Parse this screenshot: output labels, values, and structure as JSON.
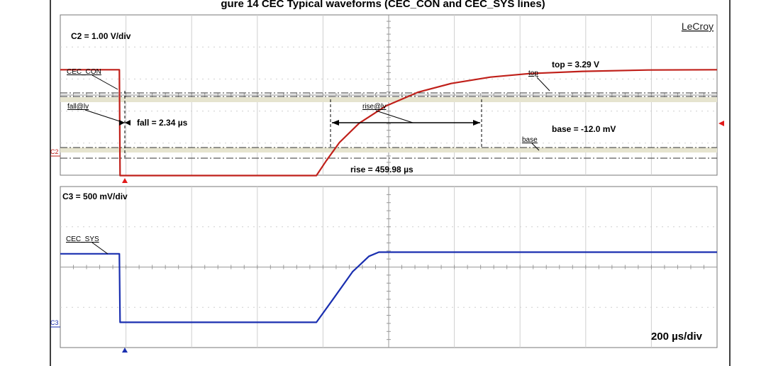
{
  "figure_title_fragment": "gure 14 CEC Typical waveforms (CEC_CON and CEC_SYS lines)",
  "chart_data": [
    {
      "type": "line",
      "panel": "top",
      "scale_label": "C2 = 1.00 V/div",
      "brand": "LeCroy",
      "channel_marker": "C2",
      "trace_label": "CEC_CON",
      "color": "#c0201a",
      "grid": true,
      "x_unit": "µs",
      "ylim_div": [
        -3.3,
        1.7
      ],
      "series": [
        {
          "name": "CEC_CON",
          "x": [
            -95,
            -5,
            -4,
            295,
            310,
            330,
            360,
            400,
            450,
            500,
            560,
            620,
            700,
            800,
            905
          ],
          "y": [
            3.29,
            3.29,
            -0.012,
            -0.012,
            0.45,
            1.02,
            1.62,
            2.15,
            2.59,
            2.86,
            3.06,
            3.17,
            3.24,
            3.28,
            3.29
          ]
        }
      ],
      "annotations": {
        "fall_marker": "fall@lv",
        "fall_text": "fall = 2.34 µs",
        "rise_marker": "rise@lv",
        "rise_text": "rise =  459.98 µs",
        "top_marker": "top",
        "top_text": "top = 3.29 V",
        "base_marker": "base",
        "base_text": "base = -12.0 mV"
      }
    },
    {
      "type": "line",
      "panel": "bottom",
      "scale_label": "C3 = 500 mV/div",
      "channel_marker": "C3",
      "trace_label": "CEC_SYS",
      "color": "#1a2fb0",
      "grid": true,
      "x_unit": "µs",
      "timebase": "200 µs/div",
      "ylim_div": [
        -2.3,
        1.65
      ],
      "series": [
        {
          "name": "CEC_SYS",
          "x": [
            -95,
            -5,
            -4,
            295,
            320,
            350,
            375,
            390,
            400,
            905
          ],
          "y": [
            0.0,
            0.0,
            -0.84,
            -0.84,
            -0.56,
            -0.22,
            -0.03,
            0.02,
            0.02,
            0.02
          ]
        }
      ]
    }
  ]
}
